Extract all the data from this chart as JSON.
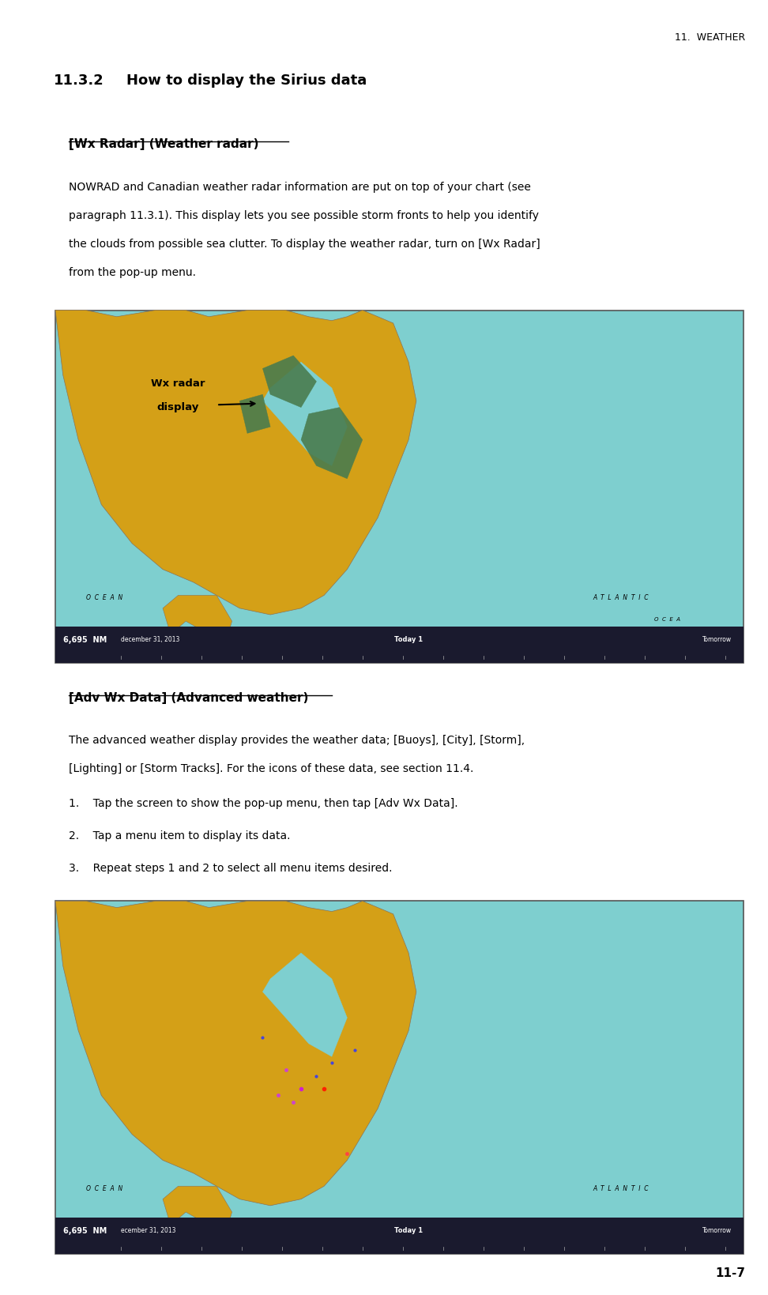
{
  "page_width": 9.72,
  "page_height": 16.4,
  "bg_color": "#ffffff",
  "top_right_text": "11.  WEATHER",
  "section_number": "11.3.2",
  "section_title": "How to display the Sirius data",
  "subsection1_title": "[Wx Radar] (Weather radar)",
  "para1_lines": [
    "NOWRAD and Canadian weather radar information are put on top of your chart (see",
    "paragraph 11.3.1). This display lets you see possible storm fronts to help you identify",
    "the clouds from possible sea clutter. To display the weather radar, turn on [Wx Radar]",
    "from the pop-up menu."
  ],
  "image1_label_line1": "Wx radar",
  "image1_label_line2": "display",
  "image1_scale": "6,695  NM",
  "image1_bottom_left": "december 31, 2013",
  "image1_bottom_mid": "Today 1",
  "image1_bottom_right": "Tomorrow",
  "subsection2_title": "[Adv Wx Data] (Advanced weather)",
  "para2_lines": [
    "The advanced weather display provides the weather data; [Buoys], [City], [Storm],",
    "[Lighting] or [Storm Tracks]. For the icons of these data, see section 11.4."
  ],
  "step1": "1.    Tap the screen to show the pop-up menu, then tap [Adv Wx Data].",
  "step2": "2.    Tap a menu item to display its data.",
  "step3": "3.    Repeat steps 1 and 2 to select all menu items desired.",
  "image2_scale": "6,695  NM",
  "image2_bottom_left": "ecember 31, 2013",
  "image2_bottom_mid": "Today 1",
  "image2_bottom_right": "Tomorrow",
  "page_number": "11-7",
  "text_color": "#000000",
  "map_ocean_color": "#7ecfcf",
  "map_land_color": "#d4a017",
  "map_green_color": "#4a7c4e",
  "map_border_color": "#555555",
  "statusbar_color": "#1a1a2e",
  "font_size_top": 9,
  "font_size_section_num": 13,
  "font_size_section_title": 13,
  "font_size_subsection": 11,
  "font_size_body": 10,
  "font_size_page_num": 11
}
